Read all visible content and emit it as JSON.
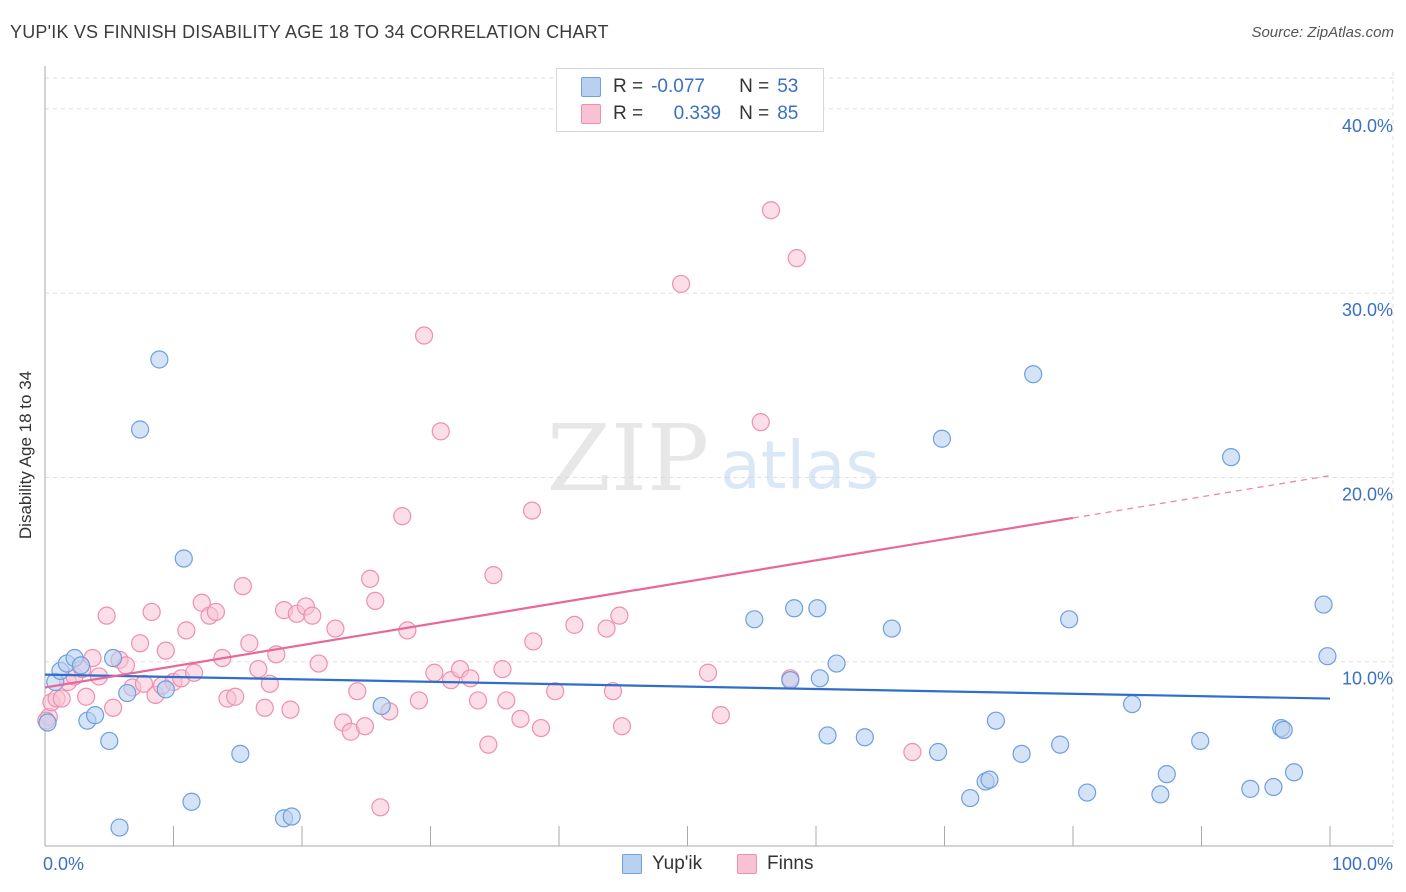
{
  "title": "YUP'IK VS FINNISH DISABILITY AGE 18 TO 34 CORRELATION CHART",
  "source": "Source: ZipAtlas.com",
  "watermark": {
    "zip": "ZIP",
    "atlas": "atlas"
  },
  "legend_top": {
    "rows": [
      {
        "r_label": "R =",
        "r_value": "-0.077",
        "n_label": "N =",
        "n_value": "53"
      },
      {
        "r_label": "R =",
        "r_value": "0.339",
        "n_label": "N =",
        "n_value": "85"
      }
    ]
  },
  "legend_bottom": {
    "series1": "Yup'ik",
    "series2": "Finns"
  },
  "colors": {
    "blue_fill": "#b9d0f0",
    "blue_stroke": "#6e9fe0",
    "blue_line": "#2f6ec9",
    "pink_fill": "#f7c3d4",
    "pink_stroke": "#ef8fb0",
    "pink_line": "#e8689a",
    "axis_text": "#3a6fc4",
    "grid": "#dddddd"
  },
  "chart_data": {
    "type": "scatter",
    "title": "YUP'IK VS FINNISH DISABILITY AGE 18 TO 34 CORRELATION CHART",
    "xlabel": "",
    "ylabel": "Disability Age 18 to 34",
    "xlim": [
      0,
      100
    ],
    "ylim": [
      0,
      42
    ],
    "x_tick_labels": [
      "0.0%",
      "100.0%"
    ],
    "y_ticks": [
      10,
      20,
      30,
      40
    ],
    "y_tick_labels": [
      "10.0%",
      "20.0%",
      "30.0%",
      "40.0%"
    ],
    "grid": true,
    "legend_position": "top-center",
    "series": [
      {
        "name": "Yup'ik",
        "r": -0.077,
        "n": 53,
        "trend": {
          "x0": 0,
          "y0": 9.3,
          "x1": 100,
          "y1": 8.0,
          "dashed_from": null
        },
        "points": [
          [
            0.2,
            6.7
          ],
          [
            0.8,
            8.9
          ],
          [
            1.2,
            9.5
          ],
          [
            1.7,
            9.9
          ],
          [
            2.3,
            10.2
          ],
          [
            2.8,
            9.8
          ],
          [
            3.3,
            6.8
          ],
          [
            3.9,
            7.1
          ],
          [
            5.0,
            5.7
          ],
          [
            5.3,
            10.2
          ],
          [
            5.8,
            1.0
          ],
          [
            6.4,
            8.3
          ],
          [
            7.4,
            22.6
          ],
          [
            8.9,
            26.4
          ],
          [
            9.4,
            8.5
          ],
          [
            10.8,
            15.6
          ],
          [
            11.4,
            2.4
          ],
          [
            15.2,
            5.0
          ],
          [
            18.6,
            1.5
          ],
          [
            19.2,
            1.6
          ],
          [
            26.2,
            7.6
          ],
          [
            55.2,
            12.3
          ],
          [
            58.3,
            12.9
          ],
          [
            60.1,
            12.9
          ],
          [
            60.3,
            9.1
          ],
          [
            60.9,
            6.0
          ],
          [
            61.6,
            9.9
          ],
          [
            63.8,
            5.9
          ],
          [
            65.9,
            11.8
          ],
          [
            69.5,
            5.1
          ],
          [
            69.8,
            22.1
          ],
          [
            72.0,
            2.6
          ],
          [
            73.2,
            3.5
          ],
          [
            73.5,
            3.6
          ],
          [
            74.0,
            6.8
          ],
          [
            76.0,
            5.0
          ],
          [
            76.9,
            25.6
          ],
          [
            79.0,
            5.5
          ],
          [
            79.7,
            12.3
          ],
          [
            81.1,
            2.9
          ],
          [
            84.6,
            7.7
          ],
          [
            86.8,
            2.8
          ],
          [
            87.3,
            3.9
          ],
          [
            89.9,
            5.7
          ],
          [
            92.3,
            21.1
          ],
          [
            93.8,
            3.1
          ],
          [
            95.6,
            3.2
          ],
          [
            96.2,
            6.4
          ],
          [
            96.4,
            6.3
          ],
          [
            97.2,
            4.0
          ],
          [
            99.5,
            13.1
          ],
          [
            99.8,
            10.3
          ],
          [
            58.0,
            9.0
          ]
        ]
      },
      {
        "name": "Finns",
        "r": 0.339,
        "n": 85,
        "trend": {
          "x0": 0,
          "y0": 8.6,
          "x1": 100,
          "y1": 20.1,
          "dashed_from": 80
        },
        "points": [
          [
            0.3,
            7.0
          ],
          [
            0.5,
            7.8
          ],
          [
            0.9,
            8.0
          ],
          [
            1.3,
            8.0
          ],
          [
            1.8,
            8.9
          ],
          [
            2.3,
            9.2
          ],
          [
            2.9,
            9.6
          ],
          [
            3.2,
            8.1
          ],
          [
            3.7,
            10.2
          ],
          [
            4.2,
            9.2
          ],
          [
            4.8,
            12.5
          ],
          [
            5.3,
            7.5
          ],
          [
            5.8,
            10.1
          ],
          [
            6.3,
            9.8
          ],
          [
            6.8,
            8.6
          ],
          [
            7.4,
            11.0
          ],
          [
            7.7,
            8.8
          ],
          [
            8.3,
            12.7
          ],
          [
            8.6,
            8.2
          ],
          [
            9.1,
            8.7
          ],
          [
            9.4,
            10.6
          ],
          [
            10.0,
            8.9
          ],
          [
            10.6,
            9.1
          ],
          [
            11.0,
            11.7
          ],
          [
            11.6,
            9.4
          ],
          [
            12.2,
            13.2
          ],
          [
            12.8,
            12.5
          ],
          [
            13.3,
            12.7
          ],
          [
            13.8,
            10.2
          ],
          [
            14.2,
            8.0
          ],
          [
            14.8,
            8.1
          ],
          [
            15.4,
            14.1
          ],
          [
            15.9,
            11.0
          ],
          [
            16.6,
            9.6
          ],
          [
            17.1,
            7.5
          ],
          [
            17.5,
            8.8
          ],
          [
            18.0,
            10.4
          ],
          [
            18.6,
            12.8
          ],
          [
            19.1,
            7.4
          ],
          [
            19.6,
            12.6
          ],
          [
            20.3,
            13.0
          ],
          [
            20.8,
            12.5
          ],
          [
            21.3,
            9.9
          ],
          [
            22.6,
            11.8
          ],
          [
            23.2,
            6.7
          ],
          [
            23.8,
            6.2
          ],
          [
            24.3,
            8.4
          ],
          [
            24.9,
            6.5
          ],
          [
            25.3,
            14.5
          ],
          [
            25.7,
            13.3
          ],
          [
            26.1,
            2.1
          ],
          [
            26.8,
            7.3
          ],
          [
            27.8,
            17.9
          ],
          [
            28.2,
            11.7
          ],
          [
            29.1,
            7.9
          ],
          [
            29.5,
            27.7
          ],
          [
            30.3,
            9.4
          ],
          [
            30.8,
            22.5
          ],
          [
            31.6,
            9.0
          ],
          [
            32.3,
            9.6
          ],
          [
            33.1,
            9.1
          ],
          [
            33.7,
            7.9
          ],
          [
            34.5,
            5.5
          ],
          [
            34.9,
            14.7
          ],
          [
            35.6,
            9.6
          ],
          [
            35.9,
            7.9
          ],
          [
            37.0,
            6.9
          ],
          [
            37.9,
            18.2
          ],
          [
            38.0,
            11.1
          ],
          [
            38.6,
            6.4
          ],
          [
            39.7,
            8.4
          ],
          [
            41.2,
            12.0
          ],
          [
            43.7,
            11.8
          ],
          [
            44.2,
            8.4
          ],
          [
            44.7,
            12.5
          ],
          [
            44.9,
            6.5
          ],
          [
            49.5,
            30.5
          ],
          [
            51.6,
            9.4
          ],
          [
            52.6,
            7.1
          ],
          [
            55.7,
            23.0
          ],
          [
            56.5,
            34.5
          ],
          [
            58.0,
            9.1
          ],
          [
            58.5,
            31.9
          ],
          [
            67.5,
            5.1
          ],
          [
            0.1,
            6.8
          ]
        ]
      }
    ]
  }
}
